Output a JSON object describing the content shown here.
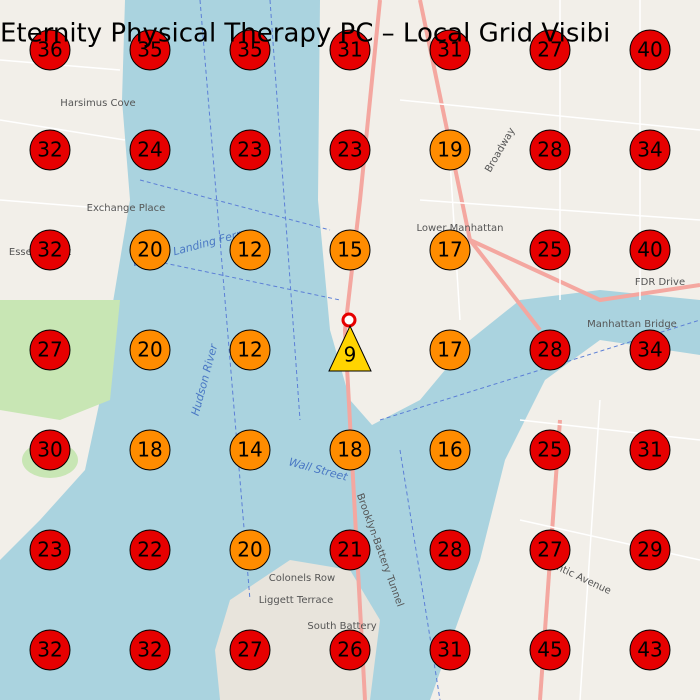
{
  "title": "Eternity Physical Therapy PC – Local Grid Visibi",
  "grid": {
    "rows": [
      [
        36,
        35,
        35,
        31,
        31,
        27,
        40
      ],
      [
        32,
        24,
        23,
        23,
        19,
        28,
        34
      ],
      [
        32,
        20,
        12,
        15,
        17,
        25,
        40
      ],
      [
        27,
        20,
        12,
        9,
        17,
        28,
        34
      ],
      [
        30,
        18,
        14,
        18,
        16,
        25,
        31
      ],
      [
        23,
        22,
        20,
        21,
        28,
        27,
        29
      ],
      [
        32,
        32,
        27,
        26,
        31,
        45,
        43
      ]
    ],
    "colors": {
      "top": "#ffd400",
      "mid": "#ff8c00",
      "low": "#e60000"
    }
  },
  "map_labels": [
    "Harsimus Cove",
    "Exchange Place",
    "Lower Manhattan",
    "Manhattan Bridge",
    "Hudson River",
    "Colonels Row",
    "Liggett Terrace",
    "South Battery",
    "Essex Street",
    "Liberty Landing Ferry",
    "FDR Drive",
    "Brooklyn-Battery Tunnel",
    "Atlantic Avenue",
    "Broadway",
    "Wall Street"
  ]
}
